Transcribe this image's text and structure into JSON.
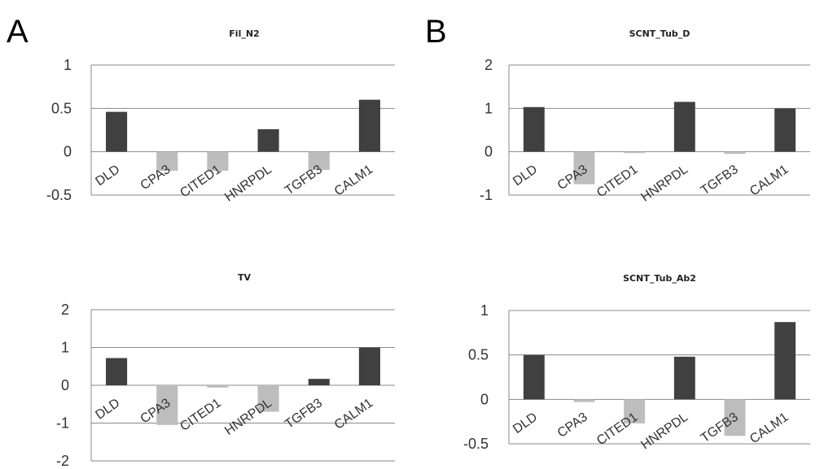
{
  "panels": {
    "a": "A",
    "b": "B"
  },
  "chart_data": [
    {
      "type": "bar",
      "title": "Fil_N2",
      "categories": [
        "DLD",
        "CPA3",
        "CITED1",
        "HNRPDL",
        "TGFB3",
        "CALM1"
      ],
      "values": [
        0.46,
        -0.22,
        -0.22,
        0.26,
        -0.21,
        0.6
      ],
      "ylim": [
        -0.5,
        1
      ],
      "yticks": [
        "1",
        "0.5",
        "0",
        "-0.5"
      ],
      "grid": true,
      "colors": {
        "positive": "#404040",
        "negative": "#bdbdbd"
      }
    },
    {
      "type": "bar",
      "title": "SCNT_Tub_D",
      "categories": [
        "DLD",
        "CPA3",
        "CITED1",
        "HNRPDL",
        "TGFB3",
        "CALM1"
      ],
      "values": [
        1.03,
        -0.75,
        -0.03,
        1.15,
        -0.05,
        1.0
      ],
      "ylim": [
        -1,
        2
      ],
      "yticks": [
        "2",
        "1",
        "0",
        "-1"
      ],
      "grid": true,
      "colors": {
        "positive": "#404040",
        "negative": "#bdbdbd"
      }
    },
    {
      "type": "bar",
      "title": "TV",
      "categories": [
        "DLD",
        "CPA3",
        "CITED1",
        "HNRPDL",
        "TGFB3",
        "CALM1"
      ],
      "values": [
        0.72,
        -1.05,
        -0.06,
        -0.7,
        0.17,
        1.0
      ],
      "ylim": [
        -2,
        2
      ],
      "yticks": [
        "2",
        "1",
        "0",
        "-1",
        "-2"
      ],
      "grid": true,
      "colors": {
        "positive": "#404040",
        "negative": "#bdbdbd"
      }
    },
    {
      "type": "bar",
      "title": "SCNT_Tub_Ab2",
      "categories": [
        "DLD",
        "CPA3",
        "CITED1",
        "HNRPDL",
        "TGFB3",
        "CALM1"
      ],
      "values": [
        0.5,
        -0.03,
        -0.27,
        0.48,
        -0.41,
        0.87
      ],
      "ylim": [
        -0.5,
        1
      ],
      "yticks": [
        "1",
        "0.5",
        "0",
        "-0.5"
      ],
      "grid": true,
      "colors": {
        "positive": "#404040",
        "negative": "#bdbdbd"
      }
    }
  ]
}
